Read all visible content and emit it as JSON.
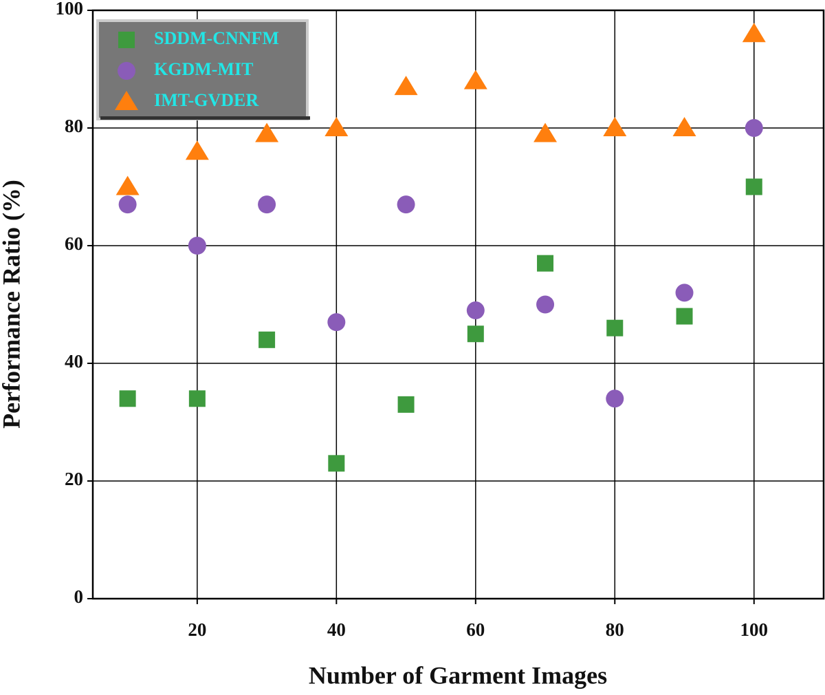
{
  "chart_data": {
    "type": "scatter",
    "x_label": "Number of Garment Images",
    "y_label": "Performance Ratio (%)",
    "x": [
      10,
      20,
      30,
      40,
      50,
      60,
      70,
      80,
      90,
      100
    ],
    "series": [
      {
        "name": "SDDM-CNNFM",
        "color": "#3e9a3e",
        "marker": "square",
        "values": [
          34,
          34,
          44,
          23,
          33,
          45,
          57,
          46,
          48,
          70
        ]
      },
      {
        "name": "KGDM-MIT",
        "color": "#8a5cb8",
        "marker": "circle",
        "values": [
          67,
          60,
          67,
          47,
          67,
          49,
          50,
          34,
          52,
          80
        ]
      },
      {
        "name": "IMT-GVDER",
        "color": "#ff7f0e",
        "marker": "triangle",
        "values": [
          70,
          76,
          79,
          80,
          87,
          88,
          79,
          80,
          80,
          96
        ]
      }
    ],
    "xlim": [
      5,
      110
    ],
    "ylim": [
      0,
      100
    ],
    "xticks": [
      20,
      40,
      60,
      80,
      100
    ],
    "yticks": [
      0,
      20,
      40,
      60,
      80,
      100
    ],
    "grid": true,
    "legend": "upper left"
  }
}
